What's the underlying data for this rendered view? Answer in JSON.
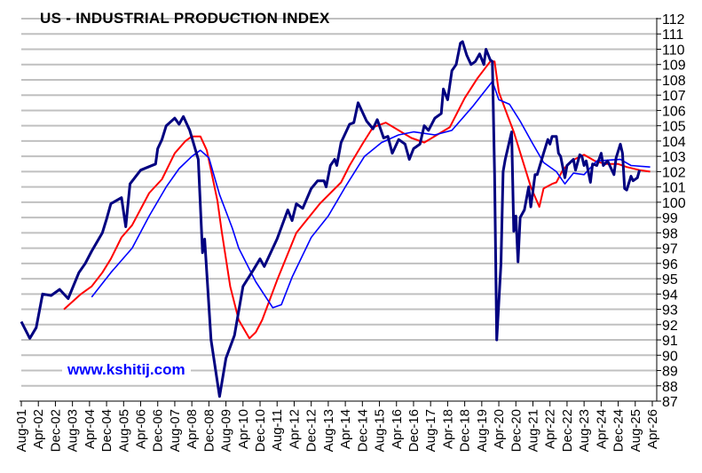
{
  "chart_data": {
    "type": "line",
    "title": "US - INDUSTRIAL PRODUCTION INDEX",
    "watermark": "www.kshitij.com",
    "xlabel": "",
    "ylabel": "",
    "ylim": [
      87,
      112
    ],
    "xlim": [
      "2001-08",
      "2026-04"
    ],
    "y_axis_side": "right",
    "grid": true,
    "legend": "none",
    "y_ticks": [
      87,
      88,
      89,
      90,
      91,
      92,
      93,
      94,
      95,
      96,
      97,
      98,
      99,
      100,
      101,
      102,
      103,
      104,
      105,
      106,
      107,
      108,
      109,
      110,
      111,
      112
    ],
    "x_ticks": [
      "Aug-01",
      "Apr-02",
      "Dec-02",
      "Aug-03",
      "Apr-04",
      "Dec-04",
      "Aug-05",
      "Apr-06",
      "Dec-06",
      "Aug-07",
      "Apr-08",
      "Dec-08",
      "Aug-09",
      "Apr-10",
      "Dec-10",
      "Aug-11",
      "Apr-12",
      "Dec-12",
      "Aug-13",
      "Apr-14",
      "Dec-14",
      "Aug-15",
      "Apr-16",
      "Dec-16",
      "Aug-17",
      "Apr-18",
      "Dec-18",
      "Aug-19",
      "Apr-20",
      "Dec-20",
      "Aug-21",
      "Apr-22",
      "Dec-22",
      "Aug-23",
      "Apr-24",
      "Dec-24",
      "Aug-25",
      "Apr-26"
    ],
    "series": [
      {
        "color": "#000080",
        "width": 3,
        "points": [
          [
            "2001-08",
            92.2
          ],
          [
            "2001-12",
            91.1
          ],
          [
            "2002-03",
            91.8
          ],
          [
            "2002-06",
            94.0
          ],
          [
            "2002-10",
            93.9
          ],
          [
            "2003-02",
            94.3
          ],
          [
            "2003-06",
            93.7
          ],
          [
            "2003-11",
            95.4
          ],
          [
            "2004-02",
            96.0
          ],
          [
            "2004-05",
            96.8
          ],
          [
            "2004-10",
            98.0
          ],
          [
            "2004-12",
            98.9
          ],
          [
            "2005-02",
            99.9
          ],
          [
            "2005-07",
            100.3
          ],
          [
            "2005-09",
            98.4
          ],
          [
            "2005-11",
            101.2
          ],
          [
            "2006-04",
            102.1
          ],
          [
            "2006-11",
            102.5
          ],
          [
            "2006-12",
            103.5
          ],
          [
            "2007-02",
            104.1
          ],
          [
            "2007-04",
            105.0
          ],
          [
            "2007-08",
            105.5
          ],
          [
            "2007-10",
            105.1
          ],
          [
            "2007-12",
            105.6
          ],
          [
            "2008-03",
            104.7
          ],
          [
            "2008-07",
            102.8
          ],
          [
            "2008-09",
            96.7
          ],
          [
            "2008-10",
            97.6
          ],
          [
            "2009-01",
            91.0
          ],
          [
            "2009-05",
            87.3
          ],
          [
            "2009-08",
            89.8
          ],
          [
            "2009-12",
            91.3
          ],
          [
            "2010-04",
            94.5
          ],
          [
            "2010-09",
            95.6
          ],
          [
            "2010-12",
            96.3
          ],
          [
            "2011-02",
            95.8
          ],
          [
            "2011-08",
            97.6
          ],
          [
            "2012-01",
            99.5
          ],
          [
            "2012-03",
            98.8
          ],
          [
            "2012-05",
            99.9
          ],
          [
            "2012-08",
            99.6
          ],
          [
            "2012-12",
            100.9
          ],
          [
            "2013-03",
            101.4
          ],
          [
            "2013-06",
            101.4
          ],
          [
            "2013-07",
            101.0
          ],
          [
            "2013-09",
            102.4
          ],
          [
            "2013-11",
            102.8
          ],
          [
            "2013-12",
            102.4
          ],
          [
            "2014-02",
            103.9
          ],
          [
            "2014-06",
            105.1
          ],
          [
            "2014-08",
            105.2
          ],
          [
            "2014-10",
            106.5
          ],
          [
            "2015-02",
            105.3
          ],
          [
            "2015-05",
            104.8
          ],
          [
            "2015-07",
            105.4
          ],
          [
            "2015-10",
            104.2
          ],
          [
            "2015-12",
            104.3
          ],
          [
            "2016-02",
            103.2
          ],
          [
            "2016-05",
            104.1
          ],
          [
            "2016-08",
            103.8
          ],
          [
            "2016-10",
            102.8
          ],
          [
            "2016-12",
            103.5
          ],
          [
            "2017-03",
            103.8
          ],
          [
            "2017-05",
            105.0
          ],
          [
            "2017-07",
            104.7
          ],
          [
            "2017-10",
            105.5
          ],
          [
            "2018-01",
            105.8
          ],
          [
            "2018-02",
            107.4
          ],
          [
            "2018-04",
            106.7
          ],
          [
            "2018-06",
            108.6
          ],
          [
            "2018-08",
            109.0
          ],
          [
            "2018-10",
            110.4
          ],
          [
            "2018-11",
            110.5
          ],
          [
            "2019-01",
            109.6
          ],
          [
            "2019-03",
            109.0
          ],
          [
            "2019-05",
            109.2
          ],
          [
            "2019-07",
            109.7
          ],
          [
            "2019-09",
            109.0
          ],
          [
            "2019-10",
            110.0
          ],
          [
            "2019-12",
            109.3
          ],
          [
            "2020-01",
            109.2
          ],
          [
            "2020-02",
            101.8
          ],
          [
            "2020-03",
            91.0
          ],
          [
            "2020-05",
            96.0
          ],
          [
            "2020-06",
            102.0
          ],
          [
            "2020-07",
            102.8
          ],
          [
            "2020-08",
            103.4
          ],
          [
            "2020-10",
            104.6
          ],
          [
            "2020-11",
            98.1
          ],
          [
            "2020-12",
            99.1
          ],
          [
            "2021-01",
            96.1
          ],
          [
            "2021-02",
            99.0
          ],
          [
            "2021-04",
            99.5
          ],
          [
            "2021-06",
            101.0
          ],
          [
            "2021-07",
            99.7
          ],
          [
            "2021-09",
            101.8
          ],
          [
            "2021-10",
            101.8
          ],
          [
            "2022-01",
            103.2
          ],
          [
            "2022-03",
            104.1
          ],
          [
            "2022-04",
            103.8
          ],
          [
            "2022-05",
            104.3
          ],
          [
            "2022-07",
            104.3
          ],
          [
            "2022-08",
            103.2
          ],
          [
            "2022-09",
            103.0
          ],
          [
            "2022-11",
            101.6
          ],
          [
            "2022-12",
            102.4
          ],
          [
            "2023-03",
            102.8
          ],
          [
            "2023-04",
            102.1
          ],
          [
            "2023-06",
            103.1
          ],
          [
            "2023-07",
            103.0
          ],
          [
            "2023-08",
            102.4
          ],
          [
            "2023-09",
            102.7
          ],
          [
            "2023-11",
            101.3
          ],
          [
            "2023-12",
            102.5
          ],
          [
            "2024-02",
            102.4
          ],
          [
            "2024-04",
            103.2
          ],
          [
            "2024-05",
            102.4
          ],
          [
            "2024-07",
            102.7
          ],
          [
            "2024-10",
            101.8
          ],
          [
            "2024-11",
            102.9
          ],
          [
            "2025-01",
            103.8
          ],
          [
            "2025-02",
            103.2
          ],
          [
            "2025-03",
            100.9
          ],
          [
            "2025-04",
            100.8
          ],
          [
            "2025-06",
            101.7
          ],
          [
            "2025-07",
            101.4
          ],
          [
            "2025-09",
            101.6
          ],
          [
            "2025-10",
            102.1
          ]
        ]
      },
      {
        "color": "#ff0000",
        "width": 2,
        "points": [
          [
            "2003-04",
            93.0
          ],
          [
            "2003-12",
            94.0
          ],
          [
            "2004-05",
            94.5
          ],
          [
            "2004-10",
            95.4
          ],
          [
            "2005-02",
            96.3
          ],
          [
            "2005-07",
            97.7
          ],
          [
            "2005-12",
            98.5
          ],
          [
            "2006-08",
            100.6
          ],
          [
            "2007-02",
            101.5
          ],
          [
            "2007-08",
            103.2
          ],
          [
            "2008-01",
            104.0
          ],
          [
            "2008-04",
            104.3
          ],
          [
            "2008-08",
            104.3
          ],
          [
            "2008-11",
            103.4
          ],
          [
            "2009-04",
            100.1
          ],
          [
            "2009-06",
            98.1
          ],
          [
            "2009-10",
            94.5
          ],
          [
            "2010-02",
            92.3
          ],
          [
            "2010-07",
            91.1
          ],
          [
            "2010-10",
            91.5
          ],
          [
            "2011-01",
            92.3
          ],
          [
            "2011-08",
            94.9
          ],
          [
            "2012-05",
            98.0
          ],
          [
            "2013-04",
            99.9
          ],
          [
            "2014-02",
            101.3
          ],
          [
            "2014-06",
            102.4
          ],
          [
            "2014-12",
            103.8
          ],
          [
            "2015-05",
            104.9
          ],
          [
            "2015-11",
            105.2
          ],
          [
            "2016-05",
            104.7
          ],
          [
            "2016-11",
            104.2
          ],
          [
            "2017-05",
            103.9
          ],
          [
            "2017-11",
            104.4
          ],
          [
            "2018-05",
            104.9
          ],
          [
            "2018-12",
            106.8
          ],
          [
            "2019-06",
            108.1
          ],
          [
            "2019-12",
            109.2
          ],
          [
            "2020-02",
            109.2
          ],
          [
            "2020-04",
            107.2
          ],
          [
            "2020-08",
            105.7
          ],
          [
            "2020-11",
            104.6
          ],
          [
            "2021-03",
            102.8
          ],
          [
            "2021-07",
            101.0
          ],
          [
            "2021-11",
            99.7
          ],
          [
            "2022-01",
            100.9
          ],
          [
            "2022-05",
            101.2
          ],
          [
            "2022-07",
            101.3
          ],
          [
            "2022-10",
            102.1
          ],
          [
            "2023-02",
            102.7
          ],
          [
            "2023-08",
            103.1
          ],
          [
            "2024-01",
            102.7
          ],
          [
            "2024-06",
            102.5
          ],
          [
            "2024-12",
            102.5
          ],
          [
            "2025-04",
            102.3
          ],
          [
            "2025-10",
            102.1
          ],
          [
            "2026-03",
            102.0
          ]
        ]
      },
      {
        "color": "#0000ff",
        "width": 1.6,
        "points": [
          [
            "2004-05",
            93.8
          ],
          [
            "2005-02",
            95.4
          ],
          [
            "2005-12",
            97.0
          ],
          [
            "2006-08",
            99.1
          ],
          [
            "2007-04",
            101.0
          ],
          [
            "2007-10",
            102.2
          ],
          [
            "2008-04",
            103.0
          ],
          [
            "2008-08",
            103.4
          ],
          [
            "2008-12",
            102.9
          ],
          [
            "2009-05",
            100.5
          ],
          [
            "2009-11",
            98.3
          ],
          [
            "2010-02",
            97.0
          ],
          [
            "2010-10",
            94.8
          ],
          [
            "2011-06",
            93.1
          ],
          [
            "2011-10",
            93.3
          ],
          [
            "2012-03",
            95.1
          ],
          [
            "2012-12",
            97.7
          ],
          [
            "2013-08",
            99.1
          ],
          [
            "2014-04",
            101.0
          ],
          [
            "2015-01",
            103.0
          ],
          [
            "2015-09",
            103.9
          ],
          [
            "2016-05",
            104.4
          ],
          [
            "2016-12",
            104.6
          ],
          [
            "2017-10",
            104.4
          ],
          [
            "2018-06",
            104.7
          ],
          [
            "2019-04",
            106.3
          ],
          [
            "2020-01",
            107.9
          ],
          [
            "2020-04",
            106.7
          ],
          [
            "2020-09",
            106.4
          ],
          [
            "2021-02",
            105.3
          ],
          [
            "2021-08",
            103.8
          ],
          [
            "2022-01",
            102.6
          ],
          [
            "2022-07",
            102.0
          ],
          [
            "2022-11",
            101.2
          ],
          [
            "2023-03",
            101.9
          ],
          [
            "2023-08",
            101.8
          ],
          [
            "2024-02",
            102.7
          ],
          [
            "2025-01",
            102.8
          ],
          [
            "2025-06",
            102.4
          ],
          [
            "2026-03",
            102.3
          ]
        ]
      }
    ]
  }
}
